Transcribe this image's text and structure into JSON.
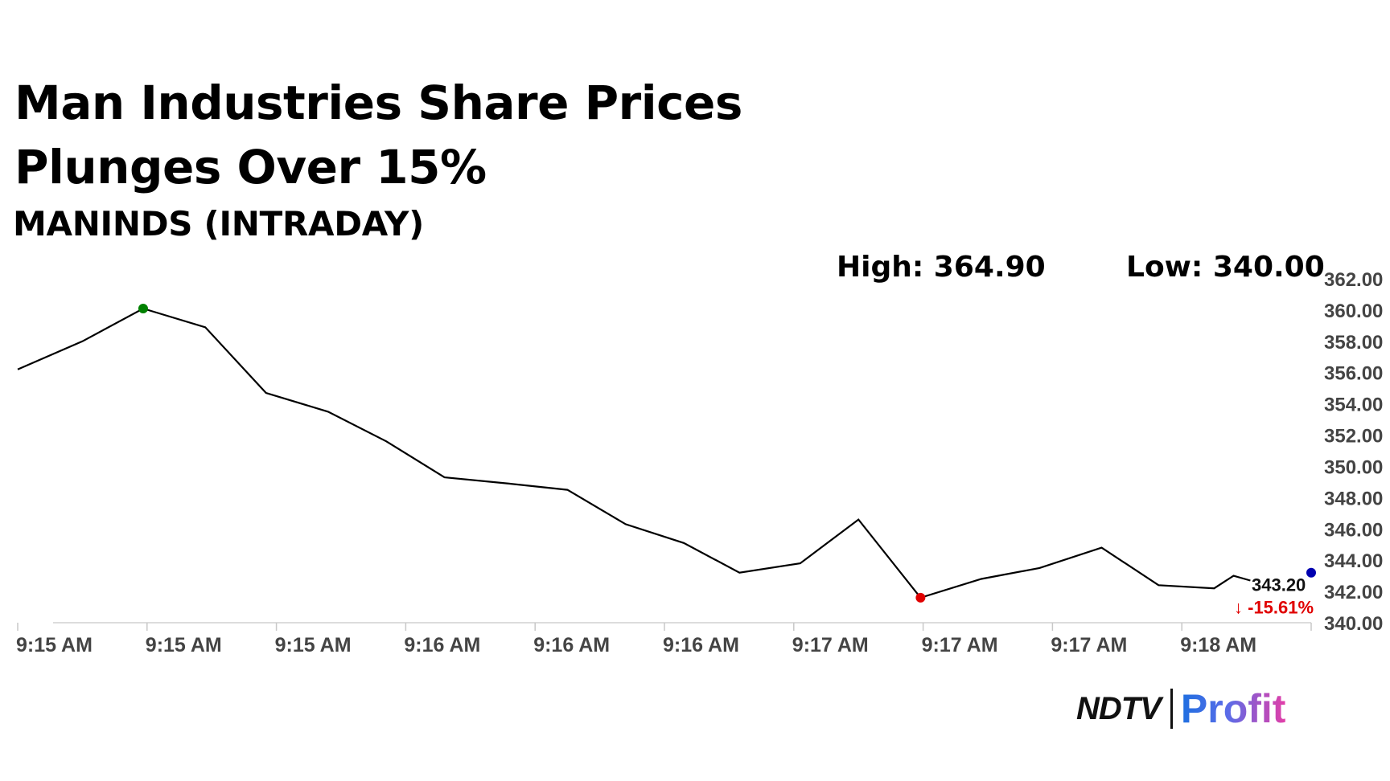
{
  "title": "Man Industries Share Prices Plunges Over 15%",
  "subtitle": "MANINDS (INTRADAY)",
  "stats": {
    "high": "High: 364.90",
    "low": "Low: 340.00"
  },
  "brand": {
    "name_left": "NDTV",
    "name_right": "Profit"
  },
  "colors": {
    "line": "#000000",
    "high_marker": "#008000",
    "low_marker": "#e00000",
    "last_marker": "#0000b0",
    "change": "#e00000"
  },
  "chart_data": {
    "type": "line",
    "x_tick_labels": [
      "9:15 AM",
      "9:15 AM",
      "9:15 AM",
      "9:16 AM",
      "9:16 AM",
      "9:16 AM",
      "9:17 AM",
      "9:17 AM",
      "9:17 AM",
      "9:18 AM"
    ],
    "y_tick_labels": [
      "340.00",
      "342.00",
      "344.00",
      "346.00",
      "348.00",
      "350.00",
      "352.00",
      "354.00",
      "356.00",
      "358.00",
      "360.00",
      "362.00"
    ],
    "ylim": [
      340,
      362
    ],
    "series": [
      {
        "x": [
          0,
          0.5,
          0.97,
          1.45,
          1.92,
          2.4,
          2.85,
          3.3,
          3.8,
          4.25,
          4.7,
          5.15,
          5.58,
          6.05,
          6.5,
          6.98,
          7.45,
          7.9,
          8.38,
          8.82,
          9.25,
          9.4,
          9.53
        ],
        "y": [
          356.2,
          358.0,
          360.1,
          358.9,
          354.7,
          353.5,
          351.6,
          349.3,
          348.9,
          348.5,
          346.3,
          345.1,
          343.2,
          343.8,
          346.6,
          341.6,
          342.8,
          343.5,
          344.8,
          342.4,
          342.2,
          343.0,
          342.7
        ]
      }
    ],
    "markers": [
      {
        "kind": "high",
        "x": 0.97,
        "y": 360.1
      },
      {
        "kind": "low",
        "x": 6.98,
        "y": 341.6
      },
      {
        "kind": "last",
        "x": 10.0,
        "y": 343.2
      }
    ],
    "last_value_label": "343.20",
    "change_label": "↓ -15.61%",
    "grid": false
  }
}
